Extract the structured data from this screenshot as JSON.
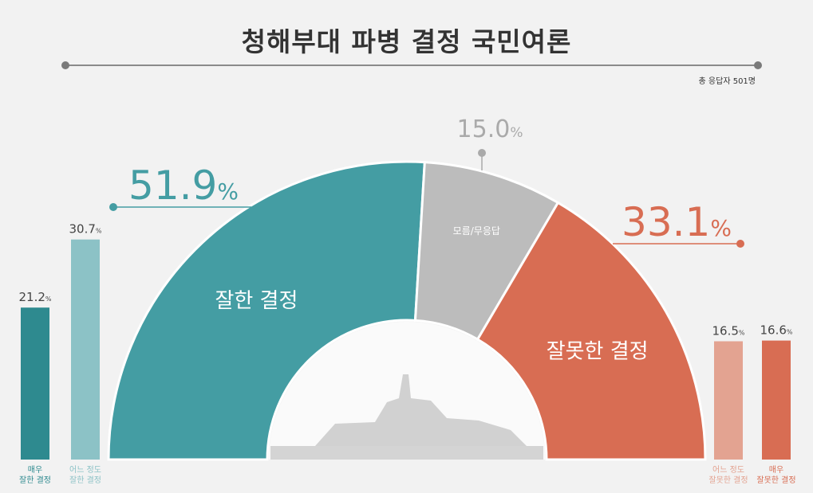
{
  "title": "청해부대 파병 결정 국민여론",
  "respondents": "총 응답자 501명",
  "colors": {
    "good": "#449da3",
    "good_strong": "#2e8a8f",
    "good_light": "#8cc2c6",
    "unknown": "#bcbcbc",
    "bad": "#d86d53",
    "bad_light": "#e3a391",
    "inner": "#ffffff"
  },
  "chart_data": [
    {
      "type": "pie",
      "subtype": "half-donut",
      "slices": [
        {
          "label": "잘한 결정",
          "value": 51.9,
          "display": "51.9",
          "color_key": "good"
        },
        {
          "label": "모름/무응답",
          "value": 15.0,
          "display": "15.0",
          "color_key": "unknown"
        },
        {
          "label": "잘못한 결정",
          "value": 33.1,
          "display": "33.1",
          "color_key": "bad"
        }
      ],
      "unit": "%"
    },
    {
      "type": "bar",
      "categories": [
        "매우|잘한 결정",
        "어느 정도|잘한 결정"
      ],
      "values": [
        21.2,
        30.7
      ],
      "colors": [
        "good_strong",
        "good_light"
      ],
      "unit": "%"
    },
    {
      "type": "bar",
      "categories": [
        "어느 정도|잘못한 결정",
        "매우|잘못한 결정"
      ],
      "values": [
        16.5,
        16.6
      ],
      "colors": [
        "bad_light",
        "bad"
      ],
      "unit": "%"
    }
  ]
}
